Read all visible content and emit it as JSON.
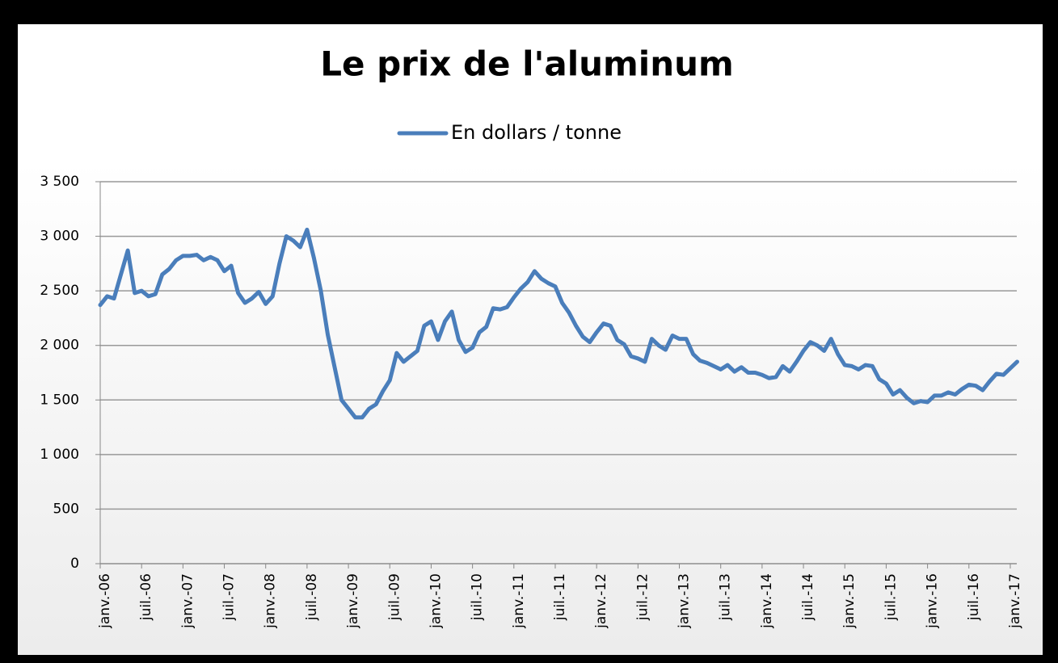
{
  "chart_data": {
    "type": "line",
    "title": "Le prix de l'aluminum",
    "categories": [
      "janv.-06",
      null,
      null,
      null,
      null,
      null,
      "juil.-06",
      null,
      null,
      null,
      null,
      null,
      "janv.-07",
      null,
      null,
      null,
      null,
      null,
      "juil.-07",
      null,
      null,
      null,
      null,
      null,
      "janv.-08",
      null,
      null,
      null,
      null,
      null,
      "juil.-08",
      null,
      null,
      null,
      null,
      null,
      "janv.-09",
      null,
      null,
      null,
      null,
      null,
      "juil.-09",
      null,
      null,
      null,
      null,
      null,
      "janv.-10",
      null,
      null,
      null,
      null,
      null,
      "juil.-10",
      null,
      null,
      null,
      null,
      null,
      "janv.-11",
      null,
      null,
      null,
      null,
      null,
      "juil.-11",
      null,
      null,
      null,
      null,
      null,
      "janv.-12",
      null,
      null,
      null,
      null,
      null,
      "juil.-12",
      null,
      null,
      null,
      null,
      null,
      "janv.-13",
      null,
      null,
      null,
      null,
      null,
      "juil.-13",
      null,
      null,
      null,
      null,
      null,
      "janv.-14",
      null,
      null,
      null,
      null,
      null,
      "juil.-14",
      null,
      null,
      null,
      null,
      null,
      "janv.-15",
      null,
      null,
      null,
      null,
      null,
      "juil.-15",
      null,
      null,
      null,
      null,
      null,
      "janv.-16",
      null,
      null,
      null,
      null,
      null,
      "juil.-16",
      null,
      null,
      null,
      null,
      null,
      "janv.-17",
      null
    ],
    "series": [
      {
        "name": "En dollars / tonne",
        "color": "#4a7ebb",
        "values": [
          2370,
          2450,
          2430,
          2650,
          2870,
          2480,
          2500,
          2450,
          2470,
          2650,
          2700,
          2780,
          2820,
          2820,
          2830,
          2780,
          2810,
          2780,
          2680,
          2730,
          2480,
          2390,
          2430,
          2490,
          2380,
          2450,
          2750,
          3000,
          2960,
          2900,
          3060,
          2800,
          2500,
          2100,
          1800,
          1500,
          1420,
          1340,
          1340,
          1420,
          1460,
          1580,
          1680,
          1930,
          1850,
          1900,
          1950,
          2180,
          2220,
          2050,
          2220,
          2310,
          2050,
          1940,
          1980,
          2120,
          2170,
          2340,
          2330,
          2350,
          2440,
          2520,
          2580,
          2680,
          2610,
          2570,
          2540,
          2390,
          2300,
          2180,
          2080,
          2030,
          2120,
          2200,
          2180,
          2050,
          2010,
          1900,
          1880,
          1850,
          2060,
          2000,
          1960,
          2090,
          2060,
          2060,
          1920,
          1860,
          1840,
          1810,
          1780,
          1820,
          1760,
          1800,
          1750,
          1750,
          1730,
          1700,
          1710,
          1810,
          1760,
          1850,
          1950,
          2030,
          2000,
          1950,
          2060,
          1920,
          1820,
          1810,
          1780,
          1820,
          1810,
          1690,
          1650,
          1550,
          1590,
          1520,
          1470,
          1490,
          1480,
          1540,
          1540,
          1570,
          1550,
          1600,
          1640,
          1630,
          1590,
          1670,
          1740,
          1730,
          1790,
          1850
        ]
      }
    ],
    "ylim": [
      0,
      3500
    ],
    "yticks": [
      0,
      500,
      {
        "value": 1000,
        "label": "1 000"
      },
      {
        "value": 1500,
        "label": "1 500"
      },
      {
        "value": 2000,
        "label": "2 000"
      },
      {
        "value": 2500,
        "label": "2 500"
      },
      {
        "value": 3000,
        "label": "3 000"
      },
      {
        "value": 3500,
        "label": "3 500"
      }
    ],
    "grid": true,
    "legend": "top"
  }
}
